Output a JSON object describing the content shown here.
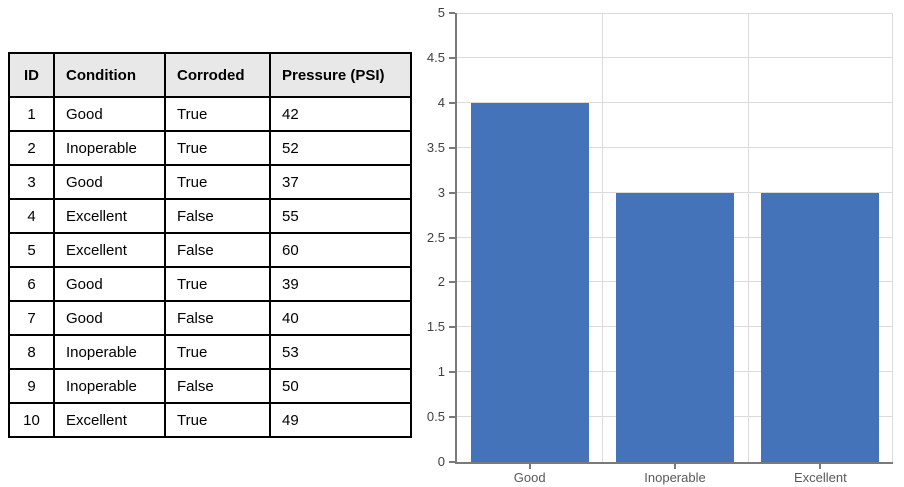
{
  "table": {
    "columns": [
      "ID",
      "Condition",
      "Corroded",
      "Pressure (PSI)"
    ],
    "rows": [
      [
        "1",
        "Good",
        "True",
        "42"
      ],
      [
        "2",
        "Inoperable",
        "True",
        "52"
      ],
      [
        "3",
        "Good",
        "True",
        "37"
      ],
      [
        "4",
        "Excellent",
        "False",
        "55"
      ],
      [
        "5",
        "Excellent",
        "False",
        "60"
      ],
      [
        "6",
        "Good",
        "True",
        "39"
      ],
      [
        "7",
        "Good",
        "False",
        "40"
      ],
      [
        "8",
        "Inoperable",
        "True",
        "53"
      ],
      [
        "9",
        "Inoperable",
        "False",
        "50"
      ],
      [
        "10",
        "Excellent",
        "True",
        "49"
      ]
    ]
  },
  "chart_data": {
    "type": "bar",
    "categories": [
      "Good",
      "Inoperable",
      "Excellent"
    ],
    "values": [
      4,
      3,
      3
    ],
    "title": "",
    "xlabel": "",
    "ylabel": "",
    "ylim": [
      0,
      5
    ],
    "ytick_step": 0.5,
    "grid": true,
    "legend_position": "none",
    "colors": {
      "bar": "#4473B9",
      "grid": "#DBDBDB",
      "axis": "#7A7A7A",
      "tick_label": "#3F3F3F",
      "category_label": "#595959"
    }
  }
}
